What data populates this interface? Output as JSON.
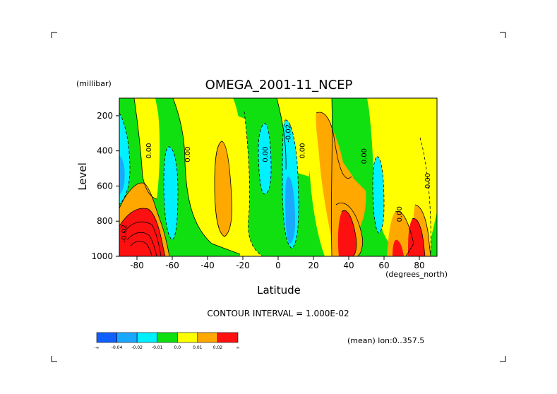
{
  "chart_data": {
    "type": "contour",
    "title": "OMEGA_2001-11_NCEP",
    "xlabel": "Latitude",
    "x_unit": "(degrees_north)",
    "ylabel": "Level",
    "y_unit": "(millibar)",
    "xlim": [
      -90,
      90
    ],
    "ylim": [
      1000,
      100
    ],
    "xticks": [
      -80,
      -60,
      -40,
      -20,
      0,
      20,
      40,
      60,
      80
    ],
    "xtick_labels": [
      "-80",
      "-60",
      "-40",
      "-20",
      "0",
      "20",
      "40",
      "60",
      "80"
    ],
    "yticks": [
      200,
      400,
      600,
      800,
      1000
    ],
    "ytick_labels": [
      "200",
      "400",
      "600",
      "800",
      "1000"
    ],
    "contour_interval_text": "CONTOUR INTERVAL = 1.000E-02",
    "mean_text": "(mean) lon:0..357.5",
    "contour_labels": [
      {
        "text": "0.00",
        "lat": -72,
        "level": 400
      },
      {
        "text": "0.00",
        "lat": -50,
        "level": 420
      },
      {
        "text": "0.00",
        "lat": -6,
        "level": 420
      },
      {
        "text": "-0.02",
        "lat": 7,
        "level": 300
      },
      {
        "text": "0.00",
        "lat": 15,
        "level": 400
      },
      {
        "text": "0.00",
        "lat": 50,
        "level": 430
      },
      {
        "text": "0.00",
        "lat": 70,
        "level": 760
      },
      {
        "text": "0.00",
        "lat": 86,
        "level": 570
      },
      {
        "text": "-0.02",
        "lat": -86,
        "level": 870
      }
    ],
    "colorbar": {
      "colors": [
        "#1060ff",
        "#1aa8ff",
        "#00f0ff",
        "#10e010",
        "#ffff00",
        "#ffa800",
        "#ff1010"
      ],
      "labels": [
        "-∞",
        "-0.04",
        "-0.02",
        "-0.01",
        "0.0",
        "0.01",
        "0.02",
        "∞"
      ]
    },
    "palette": {
      "strong_negative": "#1060ff",
      "negative": "#1aa8ff",
      "weak_negative": "#00f0ff",
      "near_zero_negative": "#10e010",
      "near_zero_positive": "#ffff00",
      "positive": "#ffa800",
      "strong_positive": "#ff1010"
    }
  }
}
